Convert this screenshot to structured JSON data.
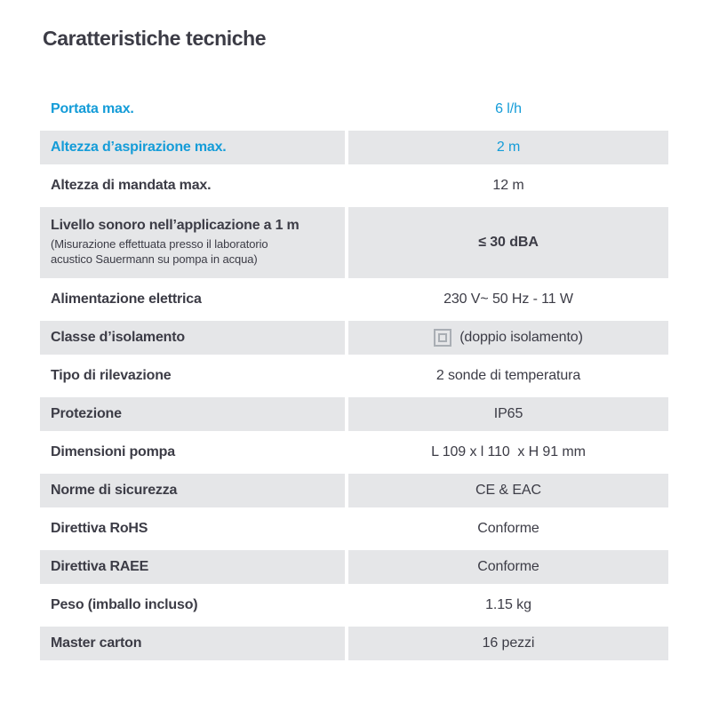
{
  "title": "Caratteristiche tecniche",
  "colors": {
    "accent_blue": "#149cd8",
    "text_dark": "#3c3c46",
    "row_gray": "#e5e6e8",
    "icon_gray": "#a9aeb4"
  },
  "table": {
    "rows": [
      {
        "label": "Portata max.",
        "value": "6 l/h",
        "highlight": true
      },
      {
        "label": "Altezza d’aspirazione max.",
        "value": "2 m",
        "highlight": true
      },
      {
        "label": "Altezza di mandata max.",
        "value": "12 m"
      },
      {
        "label": "Livello sonoro nell’applicazione a 1 m",
        "sublabel": "(Misurazione effettuata presso il laboratorio acustico Sauermann su pompa in acqua)",
        "value": "≤ 30 dBA",
        "value_bold": true
      },
      {
        "label": "Alimentazione elettrica",
        "value": "230 V~ 50 Hz - 11 W"
      },
      {
        "label": "Classe d’isolamento",
        "value": "(doppio isolamento)",
        "icon": "double-insulation-icon"
      },
      {
        "label": "Tipo di rilevazione",
        "value": "2 sonde di temperatura"
      },
      {
        "label": "Protezione",
        "value": "IP65"
      },
      {
        "label": "Dimensioni pompa",
        "value": "L 109 x l 110  x H 91 mm"
      },
      {
        "label": "Norme di sicurezza",
        "value": "CE & EAC"
      },
      {
        "label": "Direttiva RoHS",
        "value": "Conforme"
      },
      {
        "label": "Direttiva RAEE",
        "value": "Conforme"
      },
      {
        "label": "Peso (imballo incluso)",
        "value": "1.15 kg"
      },
      {
        "label": "Master carton",
        "value": "16 pezzi"
      }
    ]
  }
}
